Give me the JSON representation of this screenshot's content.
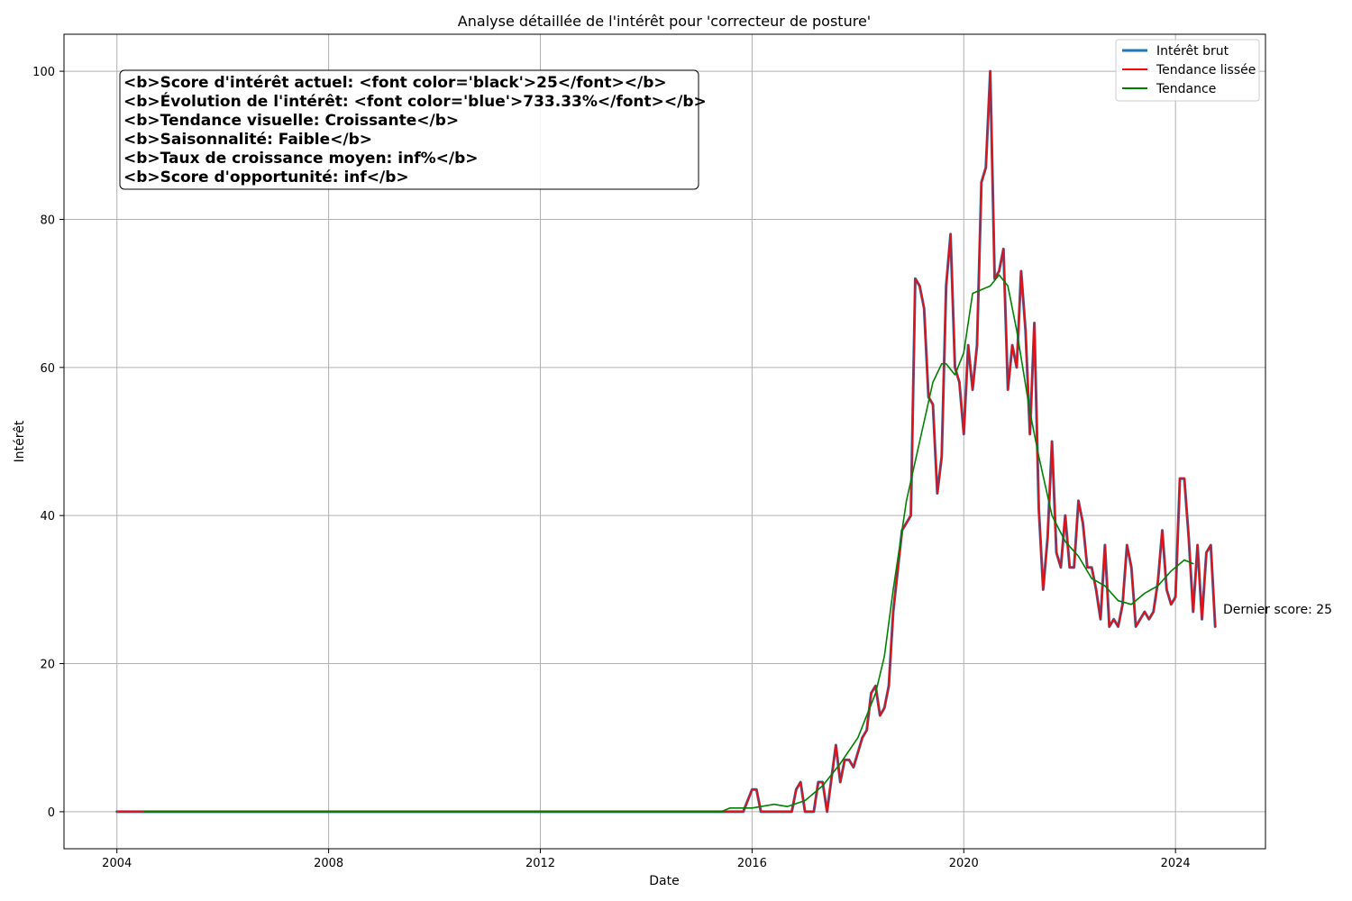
{
  "chart_data": {
    "type": "line",
    "title": "Analyse détaillée de l'intérêt pour 'correcteur de posture'",
    "xlabel": "Date",
    "ylabel": "Intérêt",
    "xlim": [
      2003,
      2025.7
    ],
    "ylim": [
      -5,
      105
    ],
    "xticks": [
      2004,
      2008,
      2012,
      2016,
      2020,
      2024
    ],
    "yticks": [
      0,
      20,
      40,
      60,
      80,
      100
    ],
    "grid": true,
    "legend_position": "top-right",
    "colors": {
      "raw": "#1f77b4",
      "smooth": "#ff0000",
      "trend": "#008000",
      "grid": "#b0b0b0",
      "text": "#000000"
    },
    "series": [
      {
        "name": "Intérêt brut",
        "points": [
          [
            "2004-01",
            0
          ],
          [
            "2015-08",
            0
          ],
          [
            "2015-11",
            0
          ],
          [
            "2016-01",
            3
          ],
          [
            "2016-02",
            3
          ],
          [
            "2016-03",
            0
          ],
          [
            "2016-10",
            0
          ],
          [
            "2016-11",
            3
          ],
          [
            "2016-12",
            4
          ],
          [
            "2017-01",
            0
          ],
          [
            "2017-03",
            0
          ],
          [
            "2017-04",
            4
          ],
          [
            "2017-05",
            4
          ],
          [
            "2017-06",
            0
          ],
          [
            "2017-08",
            9
          ],
          [
            "2017-09",
            4
          ],
          [
            "2017-10",
            7
          ],
          [
            "2017-11",
            7
          ],
          [
            "2017-12",
            6
          ],
          [
            "2018-02",
            10
          ],
          [
            "2018-03",
            11
          ],
          [
            "2018-04",
            16
          ],
          [
            "2018-05",
            17
          ],
          [
            "2018-06",
            13
          ],
          [
            "2018-07",
            14
          ],
          [
            "2018-08",
            17
          ],
          [
            "2018-09",
            27
          ],
          [
            "2018-11",
            38
          ],
          [
            "2019-01",
            40
          ],
          [
            "2019-02",
            72
          ],
          [
            "2019-03",
            71
          ],
          [
            "2019-04",
            68
          ],
          [
            "2019-05",
            56
          ],
          [
            "2019-06",
            55
          ],
          [
            "2019-07",
            43
          ],
          [
            "2019-08",
            48
          ],
          [
            "2019-09",
            71
          ],
          [
            "2019-10",
            78
          ],
          [
            "2019-11",
            60
          ],
          [
            "2019-12",
            58
          ],
          [
            "2020-01",
            51
          ],
          [
            "2020-02",
            63
          ],
          [
            "2020-03",
            57
          ],
          [
            "2020-04",
            63
          ],
          [
            "2020-05",
            85
          ],
          [
            "2020-06",
            87
          ],
          [
            "2020-07",
            100
          ],
          [
            "2020-08",
            72
          ],
          [
            "2020-09",
            73
          ],
          [
            "2020-10",
            76
          ],
          [
            "2020-11",
            57
          ],
          [
            "2020-12",
            63
          ],
          [
            "2021-01",
            60
          ],
          [
            "2021-02",
            73
          ],
          [
            "2021-03",
            65
          ],
          [
            "2021-04",
            51
          ],
          [
            "2021-05",
            66
          ],
          [
            "2021-06",
            41
          ],
          [
            "2021-07",
            30
          ],
          [
            "2021-08",
            37
          ],
          [
            "2021-09",
            50
          ],
          [
            "2021-10",
            35
          ],
          [
            "2021-11",
            33
          ],
          [
            "2021-12",
            40
          ],
          [
            "2022-01",
            33
          ],
          [
            "2022-02",
            33
          ],
          [
            "2022-03",
            42
          ],
          [
            "2022-04",
            39
          ],
          [
            "2022-05",
            33
          ],
          [
            "2022-06",
            33
          ],
          [
            "2022-07",
            30
          ],
          [
            "2022-08",
            26
          ],
          [
            "2022-09",
            36
          ],
          [
            "2022-10",
            25
          ],
          [
            "2022-11",
            26
          ],
          [
            "2022-12",
            25
          ],
          [
            "2023-01",
            28
          ],
          [
            "2023-02",
            36
          ],
          [
            "2023-03",
            33
          ],
          [
            "2023-04",
            25
          ],
          [
            "2023-05",
            26
          ],
          [
            "2023-06",
            27
          ],
          [
            "2023-07",
            26
          ],
          [
            "2023-08",
            27
          ],
          [
            "2023-09",
            31
          ],
          [
            "2023-10",
            38
          ],
          [
            "2023-11",
            30
          ],
          [
            "2023-12",
            28
          ],
          [
            "2024-01",
            29
          ],
          [
            "2024-02",
            45
          ],
          [
            "2024-03",
            45
          ],
          [
            "2024-04",
            37
          ],
          [
            "2024-05",
            27
          ],
          [
            "2024-06",
            36
          ],
          [
            "2024-07",
            26
          ],
          [
            "2024-08",
            35
          ],
          [
            "2024-09",
            36
          ],
          [
            "2024-10",
            25
          ]
        ]
      },
      {
        "name": "Tendance lissée",
        "points": [
          [
            "2004-01",
            0
          ],
          [
            "2015-08",
            0
          ],
          [
            "2015-11",
            0
          ],
          [
            "2016-01",
            3
          ],
          [
            "2016-02",
            3
          ],
          [
            "2016-03",
            0
          ],
          [
            "2016-10",
            0
          ],
          [
            "2016-11",
            3
          ],
          [
            "2016-12",
            4
          ],
          [
            "2017-01",
            0
          ],
          [
            "2017-03",
            0
          ],
          [
            "2017-04",
            4
          ],
          [
            "2017-05",
            4
          ],
          [
            "2017-06",
            0
          ],
          [
            "2017-08",
            9
          ],
          [
            "2017-09",
            4
          ],
          [
            "2017-10",
            7
          ],
          [
            "2017-11",
            7
          ],
          [
            "2017-12",
            6
          ],
          [
            "2018-02",
            10
          ],
          [
            "2018-03",
            11
          ],
          [
            "2018-04",
            16
          ],
          [
            "2018-05",
            17
          ],
          [
            "2018-06",
            13
          ],
          [
            "2018-07",
            14
          ],
          [
            "2018-08",
            17
          ],
          [
            "2018-09",
            27
          ],
          [
            "2018-11",
            38
          ],
          [
            "2019-01",
            40
          ],
          [
            "2019-02",
            72
          ],
          [
            "2019-03",
            71
          ],
          [
            "2019-04",
            68
          ],
          [
            "2019-05",
            56
          ],
          [
            "2019-06",
            55
          ],
          [
            "2019-07",
            43
          ],
          [
            "2019-08",
            48
          ],
          [
            "2019-09",
            71
          ],
          [
            "2019-10",
            78
          ],
          [
            "2019-11",
            60
          ],
          [
            "2019-12",
            58
          ],
          [
            "2020-01",
            51
          ],
          [
            "2020-02",
            63
          ],
          [
            "2020-03",
            57
          ],
          [
            "2020-04",
            63
          ],
          [
            "2020-05",
            85
          ],
          [
            "2020-06",
            87
          ],
          [
            "2020-07",
            100
          ],
          [
            "2020-08",
            72
          ],
          [
            "2020-09",
            73
          ],
          [
            "2020-10",
            76
          ],
          [
            "2020-11",
            57
          ],
          [
            "2020-12",
            63
          ],
          [
            "2021-01",
            60
          ],
          [
            "2021-02",
            73
          ],
          [
            "2021-03",
            65
          ],
          [
            "2021-04",
            51
          ],
          [
            "2021-05",
            66
          ],
          [
            "2021-06",
            41
          ],
          [
            "2021-07",
            30
          ],
          [
            "2021-08",
            37
          ],
          [
            "2021-09",
            50
          ],
          [
            "2021-10",
            35
          ],
          [
            "2021-11",
            33
          ],
          [
            "2021-12",
            40
          ],
          [
            "2022-01",
            33
          ],
          [
            "2022-02",
            33
          ],
          [
            "2022-03",
            42
          ],
          [
            "2022-04",
            39
          ],
          [
            "2022-05",
            33
          ],
          [
            "2022-06",
            33
          ],
          [
            "2022-07",
            30
          ],
          [
            "2022-08",
            26
          ],
          [
            "2022-09",
            36
          ],
          [
            "2022-10",
            25
          ],
          [
            "2022-11",
            26
          ],
          [
            "2022-12",
            25
          ],
          [
            "2023-01",
            28
          ],
          [
            "2023-02",
            36
          ],
          [
            "2023-03",
            33
          ],
          [
            "2023-04",
            25
          ],
          [
            "2023-05",
            26
          ],
          [
            "2023-06",
            27
          ],
          [
            "2023-07",
            26
          ],
          [
            "2023-08",
            27
          ],
          [
            "2023-09",
            31
          ],
          [
            "2023-10",
            38
          ],
          [
            "2023-11",
            30
          ],
          [
            "2023-12",
            28
          ],
          [
            "2024-01",
            29
          ],
          [
            "2024-02",
            45
          ],
          [
            "2024-03",
            45
          ],
          [
            "2024-04",
            37
          ],
          [
            "2024-05",
            27
          ],
          [
            "2024-06",
            36
          ],
          [
            "2024-07",
            26
          ],
          [
            "2024-08",
            35
          ],
          [
            "2024-09",
            36
          ],
          [
            "2024-10",
            25
          ]
        ]
      },
      {
        "name": "Tendance",
        "points": [
          [
            "2004-07",
            0
          ],
          [
            "2015-06",
            0
          ],
          [
            "2015-08",
            0.5
          ],
          [
            "2016-01",
            0.5
          ],
          [
            "2016-06",
            1.0
          ],
          [
            "2016-09",
            0.7
          ],
          [
            "2017-01",
            1.5
          ],
          [
            "2017-05",
            3.5
          ],
          [
            "2017-09",
            6.5
          ],
          [
            "2018-01",
            10.0
          ],
          [
            "2018-05",
            16.0
          ],
          [
            "2018-07",
            21.0
          ],
          [
            "2018-09",
            30.0
          ],
          [
            "2018-12",
            42.0
          ],
          [
            "2019-03",
            50.0
          ],
          [
            "2019-06",
            58.0
          ],
          [
            "2019-08",
            60.5
          ],
          [
            "2019-09",
            60.5
          ],
          [
            "2019-11",
            59.0
          ],
          [
            "2020-01",
            62.0
          ],
          [
            "2020-03",
            70.0
          ],
          [
            "2020-05",
            70.5
          ],
          [
            "2020-07",
            71.0
          ],
          [
            "2020-09",
            72.5
          ],
          [
            "2020-11",
            71.0
          ],
          [
            "2021-01",
            65.0
          ],
          [
            "2021-04",
            54.0
          ],
          [
            "2021-06",
            48.0
          ],
          [
            "2021-09",
            40.0
          ],
          [
            "2021-12",
            36.5
          ],
          [
            "2022-03",
            34.5
          ],
          [
            "2022-06",
            31.5
          ],
          [
            "2022-09",
            30.5
          ],
          [
            "2022-12",
            28.5
          ],
          [
            "2023-03",
            28.0
          ],
          [
            "2023-06",
            29.5
          ],
          [
            "2023-09",
            30.5
          ],
          [
            "2023-12",
            32.5
          ],
          [
            "2024-03",
            34.0
          ],
          [
            "2024-05",
            33.5
          ]
        ]
      }
    ],
    "annotations": {
      "stats_lines": [
        "<b>Score d'intérêt actuel: <font color='black'>25</font></b>",
        "<b>Évolution de l'intérêt: <font color='blue'>733.33%</font></b>",
        "<b>Tendance visuelle: Croissante</b>",
        "<b>Saisonnalité: Faible</b>",
        "<b>Taux de croissance moyen: inf%</b>",
        "<b>Score d'opportunité: inf</b>"
      ],
      "last_score": "Dernier score: 25"
    }
  }
}
